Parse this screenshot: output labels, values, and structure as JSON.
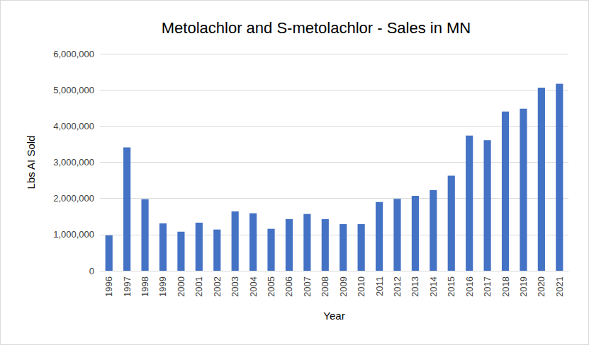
{
  "chart_data": {
    "type": "bar",
    "title": "Metolachlor and S-metolachlor - Sales in MN",
    "x_label": "Year",
    "y_label": "Lbs AI Sold",
    "categories": [
      "1996",
      "1997",
      "1998",
      "1999",
      "2000",
      "2001",
      "2002",
      "2003",
      "2004",
      "2005",
      "2006",
      "2007",
      "2008",
      "2009",
      "2010",
      "2011",
      "2012",
      "2013",
      "2014",
      "2015",
      "2016",
      "2017",
      "2018",
      "2019",
      "2020",
      "2021"
    ],
    "values": [
      980000,
      3410000,
      1980000,
      1310000,
      1080000,
      1330000,
      1140000,
      1640000,
      1590000,
      1160000,
      1430000,
      1570000,
      1430000,
      1290000,
      1290000,
      1900000,
      1990000,
      2070000,
      2230000,
      2630000,
      3740000,
      3610000,
      4400000,
      4480000,
      5060000,
      5170000
    ],
    "color": "#4472c4",
    "ylim": [
      0,
      6000000
    ],
    "yticks": [
      0,
      {
        "value": 1000000,
        "label": "1,000,000"
      },
      {
        "value": 2000000,
        "label": "2,000,000"
      },
      {
        "value": 3000000,
        "label": "3,000,000"
      },
      {
        "value": 4000000,
        "label": "4,000,000"
      },
      {
        "value": 5000000,
        "label": "5,000,000"
      },
      {
        "value": 6000000,
        "label": "6,000,000"
      }
    ],
    "grid": true
  }
}
